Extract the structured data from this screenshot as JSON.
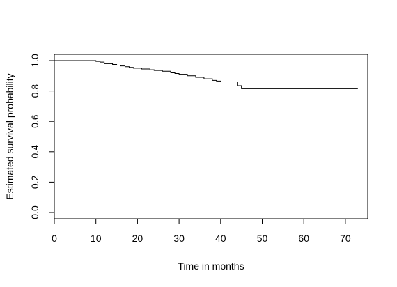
{
  "chart_data": {
    "type": "line",
    "title": "",
    "xlabel": "Time in months",
    "ylabel": "Estimated survival probability",
    "xlim": [
      0,
      73
    ],
    "ylim": [
      0,
      1
    ],
    "x_ticks": [
      "0",
      "10",
      "20",
      "30",
      "40",
      "50",
      "60",
      "70"
    ],
    "y_ticks": [
      "0.0",
      "0.2",
      "0.4",
      "0.6",
      "0.8",
      "1.0"
    ],
    "grid": false,
    "line_color": "#000000",
    "series": [
      {
        "step": true,
        "x": [
          0,
          10,
          11,
          12,
          14,
          15,
          16,
          17,
          18,
          19,
          21,
          23,
          24,
          26,
          28,
          29,
          30,
          32,
          34,
          36,
          38,
          39,
          40,
          44,
          45,
          73
        ],
        "y": [
          1.0,
          0.995,
          0.99,
          0.98,
          0.975,
          0.97,
          0.965,
          0.96,
          0.955,
          0.95,
          0.945,
          0.94,
          0.935,
          0.93,
          0.92,
          0.915,
          0.91,
          0.9,
          0.89,
          0.88,
          0.87,
          0.865,
          0.86,
          0.835,
          0.815,
          0.815
        ]
      }
    ]
  }
}
